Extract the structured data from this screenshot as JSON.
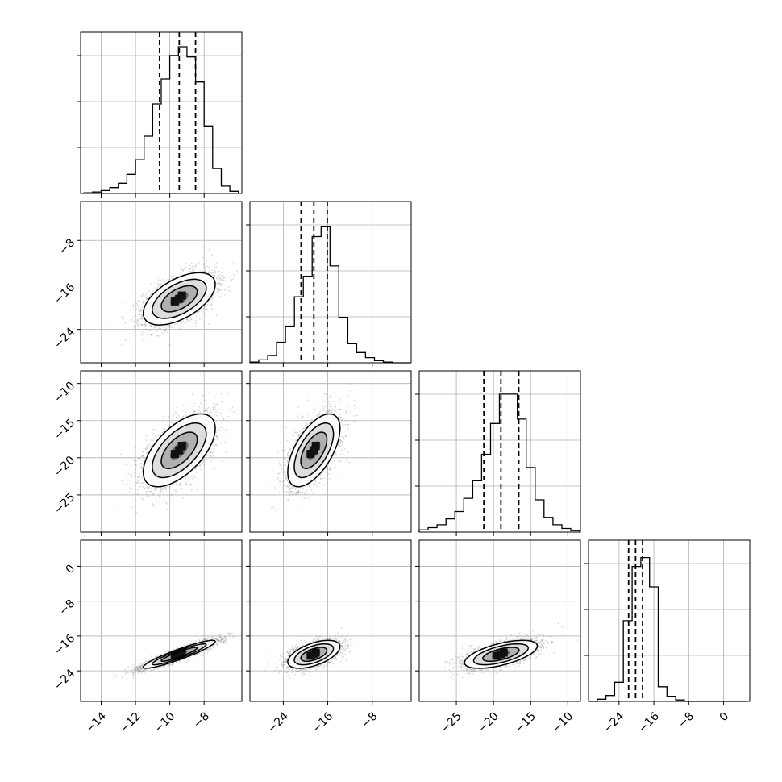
{
  "colors": {
    "frame": "#000000",
    "grid": "#b0b0b0",
    "points": "#808080",
    "hist": "#000000",
    "quantile": "#000000"
  },
  "chart_data": {
    "type": "corner",
    "params": [
      {
        "range": [
          -15.2,
          -5.8
        ],
        "ticks": [
          -14,
          -12,
          -10,
          -8
        ],
        "tick_labels": [
          "−14",
          "−12",
          "−10",
          "−8"
        ]
      },
      {
        "range": [
          -30.0,
          -1.0
        ],
        "ticks": [
          -24,
          -16,
          -8
        ],
        "tick_labels": [
          "−24",
          "−16",
          "−8"
        ]
      },
      {
        "range": [
          -30.0,
          -8.3
        ],
        "ticks": [
          -25,
          -20,
          -15,
          -10
        ],
        "tick_labels": [
          "−25",
          "−20",
          "−15",
          "−10"
        ]
      },
      {
        "range": [
          -31.0,
          6.0
        ],
        "ticks": [
          -24,
          -16,
          -8,
          0
        ],
        "tick_labels": [
          "−24",
          "−16",
          "−8",
          "0"
        ]
      }
    ],
    "means": [
      -9.45,
      -18.5,
      -19.0,
      -20.2
    ],
    "sigmas": [
      1.05,
      2.35,
      2.45,
      1.6
    ],
    "quantiles": [
      [
        -10.6,
        -9.45,
        -8.5
      ],
      [
        -20.8,
        -18.5,
        -16.1
      ],
      [
        -21.3,
        -19.0,
        -16.6
      ],
      [
        -21.8,
        -20.2,
        -18.6
      ]
    ],
    "correlation": [
      [
        1.0,
        0.55,
        0.6,
        0.92
      ],
      [
        0.55,
        1.0,
        0.6,
        0.55
      ],
      [
        0.6,
        0.6,
        1.0,
        0.6
      ],
      [
        0.92,
        0.55,
        0.6,
        1.0
      ]
    ],
    "histograms": [
      {
        "edges": [
          -15.0,
          -14.5,
          -14.0,
          -13.5,
          -13.0,
          -12.5,
          -12.0,
          -11.5,
          -11.0,
          -10.5,
          -10.0,
          -9.5,
          -9.0,
          -8.5,
          -8.0,
          -7.5,
          -7.0,
          -6.5,
          -6.0
        ],
        "counts": [
          0.005,
          0.01,
          0.02,
          0.04,
          0.07,
          0.13,
          0.23,
          0.39,
          0.61,
          0.78,
          0.94,
          1.0,
          0.93,
          0.76,
          0.46,
          0.17,
          0.05,
          0.015
        ]
      },
      {
        "edges": [
          -30.0,
          -28.4,
          -26.8,
          -25.2,
          -23.6,
          -22.0,
          -20.4,
          -18.8,
          -17.2,
          -15.6,
          -14.0,
          -12.4,
          -10.8,
          -9.2,
          -7.6,
          -6.0,
          -4.4,
          -2.8,
          -1.2
        ],
        "counts": [
          0.005,
          0.02,
          0.05,
          0.14,
          0.25,
          0.45,
          0.59,
          0.86,
          0.93,
          0.66,
          0.31,
          0.13,
          0.07,
          0.035,
          0.015,
          0.005,
          0.0,
          0.0
        ]
      },
      {
        "edges": [
          -30.0,
          -28.8,
          -27.6,
          -26.4,
          -25.2,
          -24.0,
          -22.8,
          -21.6,
          -20.4,
          -19.2,
          -18.0,
          -16.8,
          -15.6,
          -14.4,
          -13.2,
          -12.0,
          -10.8,
          -9.6,
          -8.4
        ],
        "counts": [
          0.015,
          0.03,
          0.05,
          0.09,
          0.14,
          0.23,
          0.35,
          0.53,
          0.74,
          0.94,
          0.94,
          0.77,
          0.44,
          0.22,
          0.1,
          0.05,
          0.025,
          0.01
        ]
      },
      {
        "edges": [
          -31.0,
          -29.0,
          -27.0,
          -25.0,
          -23.0,
          -21.0,
          -19.0,
          -17.0,
          -15.0,
          -13.0,
          -11.0,
          -9.0,
          -7.0,
          -5.0,
          -3.0,
          -1.0,
          1.0,
          3.0,
          5.0
        ],
        "counts": [
          0.0,
          0.015,
          0.04,
          0.13,
          0.55,
          0.92,
          0.98,
          0.78,
          0.1,
          0.035,
          0.01,
          0.0,
          0.0,
          0.0,
          0.0,
          0.0,
          0.0,
          0.0
        ]
      }
    ],
    "scatter_points_per_panel": 3000,
    "contour_levels_sigma": [
      0.5,
      1.0,
      1.5,
      2.0
    ],
    "grid": true
  }
}
